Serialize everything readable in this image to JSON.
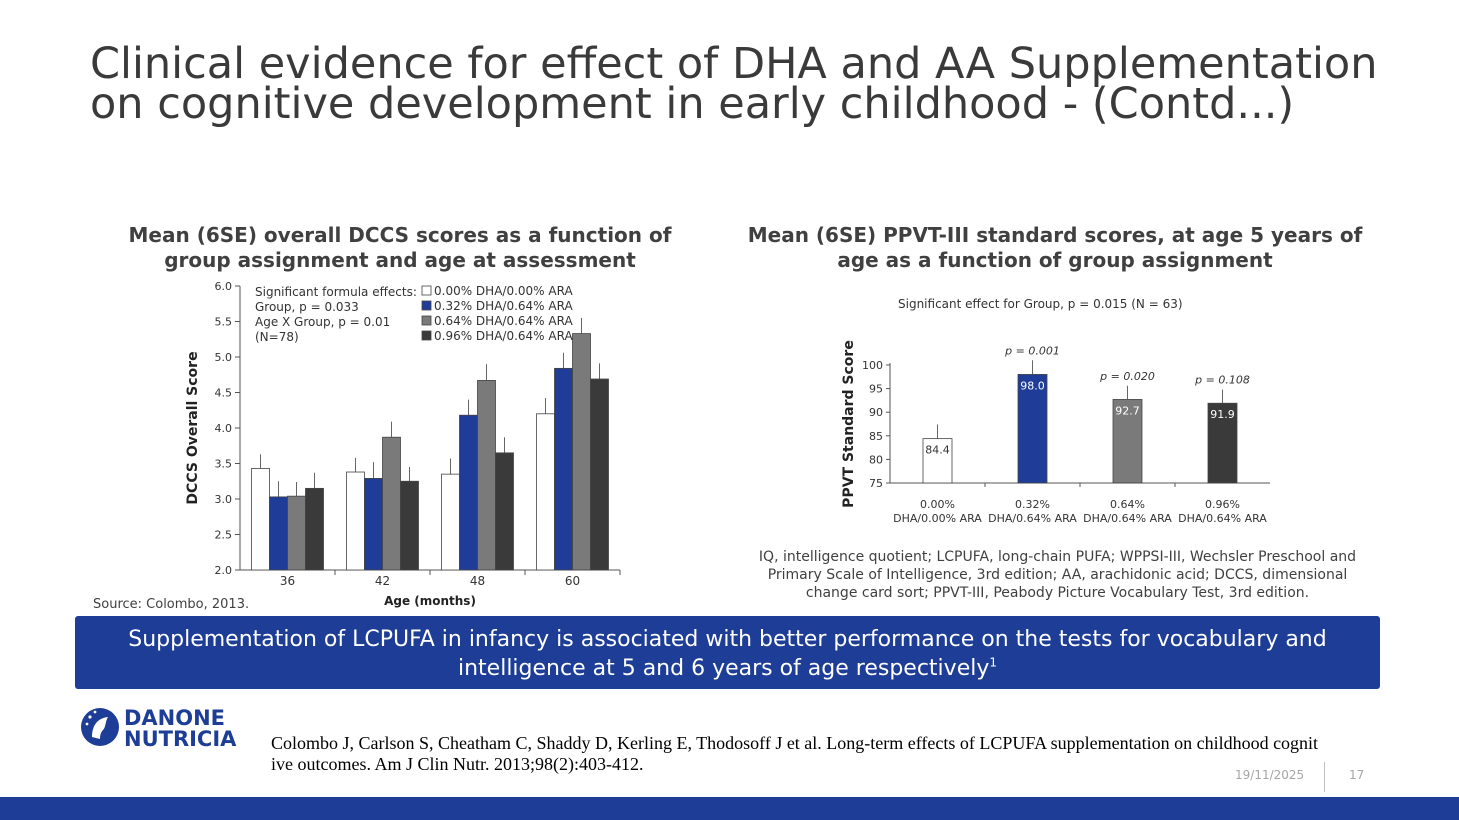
{
  "slide": {
    "title": "Clinical evidence for effect of  DHA and AA Supplementation on cognitive development in early childhood - (Contd...)",
    "source": "Source: Colombo, 2013.",
    "footnote": "IQ, intelligence quotient; LCPUFA, long-chain PUFA; WPPSI-III, Wechsler Preschool and Primary Scale of Intelligence, 3rd edition; AA, arachidonic acid; DCCS, dimensional change card sort;     PPVT-III, Peabody Picture Vocabulary Test, 3rd edition.",
    "banner_text": "Supplementation of LCPUFA in infancy is associated with better performance on the tests for vocabulary and intelligence at 5 and 6 years of age respectively",
    "banner_sup": "1",
    "reference": "Colombo J, Carlson S, Cheatham C, Shaddy D, Kerling E, Thodosoff J et al. Long-term effects of LCPUFA supplementation on childhood cognitive outcomes. Am J Clin Nutr. 2013;98(2):403-412.",
    "date": "19/11/2025",
    "page_number": "17",
    "logo": {
      "line1": "DANONE",
      "line2": "NUTRICIA"
    },
    "colors": {
      "brand_blue": "#1d3d96",
      "title_gray": "#3a3a3a"
    }
  },
  "chart_data": [
    {
      "type": "bar",
      "title": "Mean (6SE) overall DCCS scores as a function of group assignment and age at assessment",
      "xlabel": "Age (months)",
      "ylabel": "DCCS Overall Score",
      "ylim": [
        2.0,
        6.0
      ],
      "yticks": [
        "2.0",
        "2.5",
        "3.0",
        "3.5",
        "4.0",
        "4.5",
        "5.0",
        "5.5",
        "6.0"
      ],
      "categories": [
        "36",
        "42",
        "48",
        "60"
      ],
      "annotations": [
        "Significant formula effects:",
        "Group, p = 0.033",
        "Age X Group, p = 0.01",
        "(N=78)"
      ],
      "series": [
        {
          "name": "0.00% DHA/0.00% ARA",
          "color": "#ffffff",
          "values": [
            3.43,
            3.38,
            3.35,
            4.2
          ],
          "errors": [
            0.2,
            0.2,
            0.22,
            0.22
          ]
        },
        {
          "name": "0.32% DHA/0.64% ARA",
          "color": "#1f3c99",
          "values": [
            3.03,
            3.29,
            4.18,
            4.84
          ],
          "errors": [
            0.22,
            0.23,
            0.22,
            0.22
          ]
        },
        {
          "name": "0.64% DHA/0.64% ARA",
          "color": "#7a7a7a",
          "values": [
            3.04,
            3.87,
            4.67,
            5.33
          ],
          "errors": [
            0.2,
            0.22,
            0.23,
            0.22
          ]
        },
        {
          "name": "0.96% DHA/0.64% ARA",
          "color": "#3a3a3a",
          "values": [
            3.15,
            3.25,
            3.65,
            4.69
          ],
          "errors": [
            0.22,
            0.2,
            0.22,
            0.22
          ]
        }
      ]
    },
    {
      "type": "bar",
      "title": "Mean (6SE) PPVT-III standard scores, at age 5 years of age as a function of group assignment",
      "subtitle": "Significant effect for Group, p = 0.015 (N = 63)",
      "ylabel": "PPVT Standard Score",
      "ylim": [
        75,
        100
      ],
      "yticks": [
        "75",
        "80",
        "85",
        "90",
        "95",
        "100"
      ],
      "categories": [
        [
          "0.00%",
          "DHA/0.00% ARA"
        ],
        [
          "0.32%",
          "DHA/0.64% ARA"
        ],
        [
          "0.64%",
          "DHA/0.64% ARA"
        ],
        [
          "0.96%",
          "DHA/0.64% ARA"
        ]
      ],
      "values": [
        84.4,
        98.0,
        92.7,
        91.9
      ],
      "value_labels": [
        "84.4",
        "98.0",
        "92.7",
        "91.9"
      ],
      "errors": [
        3.0,
        3.0,
        2.9,
        2.9
      ],
      "p_values": [
        "",
        "p = 0.001",
        "p = 0.020",
        "p = 0.108"
      ],
      "colors": [
        "#ffffff",
        "#1f3c99",
        "#7a7a7a",
        "#3a3a3a"
      ]
    }
  ]
}
